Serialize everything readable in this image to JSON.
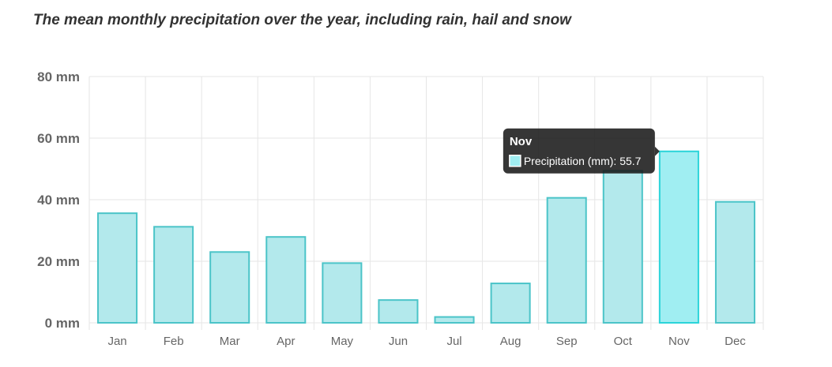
{
  "chart_data": {
    "type": "bar",
    "title": "The mean monthly precipitation over the year, including rain, hail and snow",
    "categories": [
      "Jan",
      "Feb",
      "Mar",
      "Apr",
      "May",
      "Jun",
      "Jul",
      "Aug",
      "Sep",
      "Oct",
      "Nov",
      "Dec"
    ],
    "series": [
      {
        "name": "Precipitation (mm)",
        "values": [
          35.6,
          31.2,
          23.0,
          27.9,
          19.4,
          7.4,
          1.9,
          12.8,
          40.6,
          49.4,
          55.7,
          39.3
        ]
      }
    ],
    "ylim": [
      0,
      80
    ],
    "yticks": [
      "0 mm",
      "20 mm",
      "40 mm",
      "60 mm",
      "80 mm"
    ],
    "ytick_values": [
      0,
      20,
      40,
      60,
      80
    ],
    "grid": true,
    "colors": {
      "bar_fill": "#b3e9ec",
      "bar_stroke": "#4bc4c8",
      "bar_fill_active": "#a0eef2",
      "bar_stroke_active": "#2ad4d9",
      "grid": "#e6e6e6",
      "tooltip_bg": "#1a1a1a"
    },
    "tooltip": {
      "category": "Nov",
      "title": "Nov",
      "label": "Precipitation (mm): 55.7"
    }
  }
}
